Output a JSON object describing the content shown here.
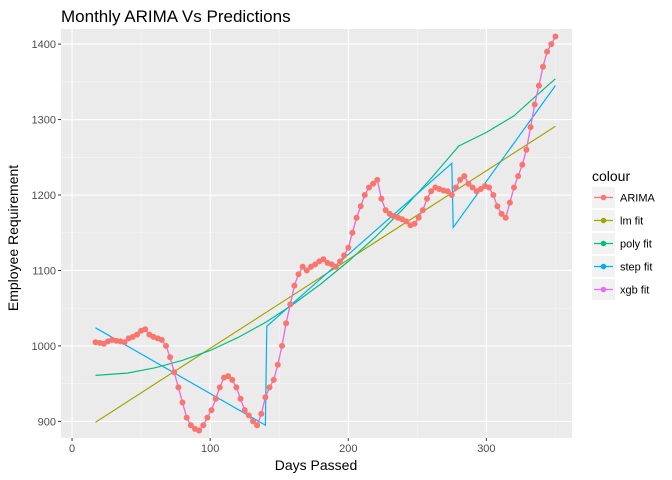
{
  "chart_data": {
    "type": "line",
    "title": "Monthly ARIMA Vs Predictions",
    "xlabel": "Days Passed",
    "ylabel": "Employee Requirement",
    "xlim": [
      -8,
      362
    ],
    "ylim": [
      878,
      1420
    ],
    "x_ticks": [
      0,
      100,
      200,
      300
    ],
    "y_ticks": [
      900,
      1000,
      1100,
      1200,
      1300,
      1400
    ],
    "grid": true,
    "legend": {
      "title": "colour",
      "position": "right"
    },
    "series": [
      {
        "name": "ARIMA",
        "color": "#F8766D",
        "style": "line+points",
        "x": [
          17,
          20,
          23,
          26,
          29,
          32,
          35,
          38,
          41,
          44,
          47,
          50,
          53,
          56,
          59,
          62,
          65,
          68,
          71,
          74,
          77,
          80,
          83,
          86,
          89,
          92,
          95,
          98,
          101,
          104,
          107,
          110,
          113,
          116,
          119,
          122,
          125,
          128,
          131,
          134,
          137,
          140,
          143,
          146,
          149,
          152,
          155,
          158,
          161,
          164,
          167,
          170,
          173,
          176,
          179,
          182,
          185,
          188,
          191,
          194,
          197,
          200,
          203,
          206,
          209,
          212,
          215,
          218,
          221,
          224,
          227,
          230,
          233,
          236,
          239,
          242,
          245,
          248,
          251,
          254,
          257,
          260,
          263,
          266,
          269,
          272,
          275,
          278,
          281,
          284,
          287,
          290,
          293,
          296,
          299,
          302,
          305,
          308,
          311,
          314,
          317,
          320,
          323,
          326,
          329,
          332,
          335,
          338,
          341,
          344,
          347,
          350
        ],
        "values": [
          1005,
          1004,
          1003,
          1006,
          1008,
          1007,
          1006,
          1005,
          1010,
          1012,
          1015,
          1020,
          1022,
          1015,
          1012,
          1010,
          1008,
          1000,
          985,
          965,
          945,
          925,
          905,
          895,
          890,
          888,
          895,
          905,
          915,
          930,
          945,
          958,
          960,
          955,
          945,
          930,
          915,
          908,
          900,
          895,
          910,
          932,
          945,
          955,
          975,
          1000,
          1030,
          1055,
          1080,
          1095,
          1105,
          1100,
          1105,
          1108,
          1112,
          1115,
          1110,
          1108,
          1105,
          1112,
          1120,
          1130,
          1150,
          1170,
          1185,
          1200,
          1210,
          1215,
          1220,
          1195,
          1180,
          1175,
          1172,
          1170,
          1168,
          1165,
          1160,
          1162,
          1170,
          1180,
          1195,
          1205,
          1210,
          1208,
          1206,
          1205,
          1200,
          1210,
          1220,
          1225,
          1215,
          1210,
          1205,
          1208,
          1212,
          1210,
          1200,
          1185,
          1175,
          1170,
          1190,
          1210,
          1225,
          1240,
          1260,
          1290,
          1320,
          1345,
          1370,
          1390,
          1400,
          1410
        ]
      },
      {
        "name": "lm fit",
        "color": "#A3A500",
        "style": "line",
        "x": [
          17,
          350
        ],
        "values": [
          899,
          1291
        ]
      },
      {
        "name": "poly fit",
        "color": "#00BF7D",
        "style": "line",
        "x": [
          17,
          40,
          60,
          80,
          100,
          120,
          140,
          160,
          180,
          200,
          220,
          240,
          260,
          280,
          300,
          320,
          340,
          350
        ],
        "values": [
          961,
          964,
          971,
          981,
          994,
          1011,
          1031,
          1055,
          1082,
          1112,
          1145,
          1182,
          1222,
          1265,
          1283,
          1305,
          1338,
          1354
        ]
      },
      {
        "name": "step fit",
        "color": "#00B0F6",
        "style": "line",
        "x": [
          17,
          139,
          140,
          141,
          275,
          276,
          350
        ],
        "values": [
          1024,
          896,
          895,
          1026,
          1242,
          1157,
          1345
        ]
      },
      {
        "name": "xgb fit",
        "color": "#E76BF3",
        "style": "line",
        "x": [
          17,
          20,
          23,
          26,
          29,
          32,
          35,
          38,
          41,
          44,
          47,
          50,
          53,
          56,
          59,
          62,
          65,
          68,
          71,
          74,
          77,
          80,
          83,
          86,
          89,
          92,
          95,
          98,
          101,
          104,
          107,
          110,
          113,
          116,
          119,
          122,
          125,
          128,
          131,
          134,
          137,
          140,
          143,
          146,
          149,
          152,
          155,
          158,
          161,
          164,
          167,
          170,
          173,
          176,
          179,
          182,
          185,
          188,
          191,
          194,
          197,
          200,
          203,
          206,
          209,
          212,
          215,
          218,
          221,
          224,
          227,
          230,
          233,
          236,
          239,
          242,
          245,
          248,
          251,
          254,
          257,
          260,
          263,
          266,
          269,
          272,
          275,
          278,
          281,
          284,
          287,
          290,
          293,
          296,
          299,
          302,
          305,
          308,
          311,
          314,
          317,
          320,
          323,
          326,
          329,
          332,
          335,
          338,
          341,
          344,
          347,
          350
        ],
        "values": [
          1005,
          1004,
          1003,
          1006,
          1008,
          1007,
          1006,
          1005,
          1010,
          1012,
          1015,
          1020,
          1022,
          1015,
          1012,
          1010,
          1008,
          1000,
          985,
          965,
          945,
          925,
          905,
          895,
          890,
          888,
          895,
          905,
          915,
          930,
          945,
          958,
          960,
          955,
          945,
          930,
          915,
          908,
          900,
          895,
          910,
          932,
          945,
          955,
          975,
          1000,
          1030,
          1055,
          1080,
          1095,
          1105,
          1100,
          1105,
          1108,
          1112,
          1115,
          1110,
          1108,
          1105,
          1112,
          1120,
          1130,
          1150,
          1170,
          1185,
          1200,
          1210,
          1215,
          1220,
          1195,
          1180,
          1175,
          1172,
          1170,
          1168,
          1165,
          1160,
          1162,
          1170,
          1180,
          1195,
          1205,
          1210,
          1208,
          1206,
          1205,
          1200,
          1210,
          1220,
          1225,
          1215,
          1210,
          1205,
          1208,
          1212,
          1210,
          1200,
          1185,
          1175,
          1170,
          1190,
          1210,
          1225,
          1240,
          1260,
          1290,
          1320,
          1345,
          1370,
          1390,
          1400,
          1410
        ]
      }
    ]
  }
}
